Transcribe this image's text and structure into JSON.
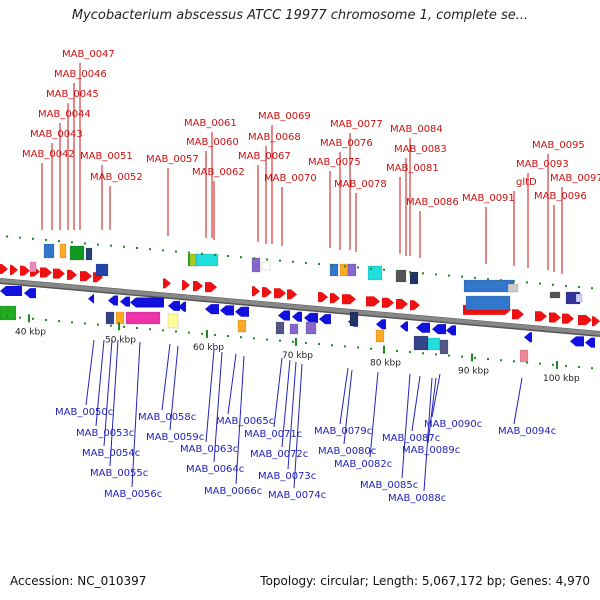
{
  "title": "Mycobacterium abscessus ATCC 19977 chromosome 1, complete se...",
  "footer": {
    "accession_label": "Accession:",
    "accession": "NC_010397",
    "topology_label": "Topology:",
    "topology": "circular",
    "length_label": "Length:",
    "length": "5,067,172 bp",
    "genes_label": "Genes:",
    "genes": "4,970"
  },
  "colors": {
    "forward_gene": "#ee1111",
    "reverse_gene": "#1111dd",
    "forward_label": "#cc1111",
    "reverse_label": "#2222bb",
    "backbone": "#888888",
    "tick": "#228822"
  },
  "axis_ticks": [
    "40 kbp",
    "50 kbp",
    "60 kbp",
    "70 kbp",
    "80 kbp",
    "90 kbp",
    "100 kbp"
  ],
  "forward_labels": [
    "MAB_0042",
    "MAB_0043",
    "MAB_0044",
    "MAB_0045",
    "MAB_0046",
    "MAB_0047",
    "MAB_0051",
    "MAB_0052",
    "MAB_0057",
    "MAB_0060",
    "MAB_0061",
    "MAB_0062",
    "MAB_0067",
    "MAB_0068",
    "MAB_0069",
    "MAB_0070",
    "MAB_0075",
    "MAB_0076",
    "MAB_0077",
    "MAB_0078",
    "MAB_0081",
    "MAB_0083",
    "MAB_0084",
    "MAB_0086",
    "MAB_0091",
    "gltD",
    "MAB_0093",
    "MAB_0095",
    "MAB_0096",
    "MAB_0097"
  ],
  "reverse_labels": [
    "MAB_0050c",
    "MAB_0053c",
    "MAB_0054c",
    "MAB_0055c",
    "MAB_0056c",
    "MAB_0058c",
    "MAB_0059c",
    "MAB_0063c",
    "MAB_0064c",
    "MAB_0065c",
    "MAB_0066c",
    "MAB_0071c",
    "MAB_0072c",
    "MAB_0073c",
    "MAB_0074c",
    "MAB_0079c",
    "MAB_0080c",
    "MAB_0082c",
    "MAB_0085c",
    "MAB_0087c",
    "MAB_0088c",
    "MAB_0089c",
    "MAB_0090c",
    "MAB_0094c"
  ]
}
